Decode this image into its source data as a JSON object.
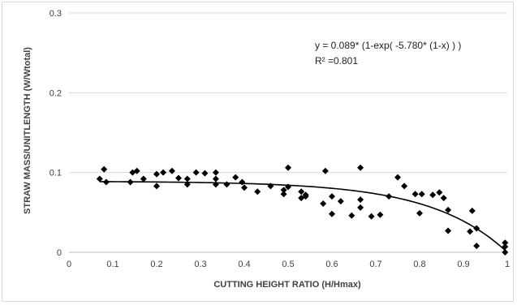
{
  "chart_data": {
    "type": "scatter",
    "title": "",
    "xlabel": "CUTTING HEIGHT RATIO (H/Hmax)",
    "ylabel": "STRAW MASS/UNITLENGTH (W/Wtotal)",
    "xlim": [
      0,
      1
    ],
    "ylim": [
      0,
      0.3
    ],
    "x_ticks": [
      "0",
      "0.1",
      "0.2",
      "0.3",
      "0.4",
      "0.5",
      "0.6",
      "0.7",
      "0.8",
      "0.9",
      "1"
    ],
    "y_ticks": [
      "0",
      "0.1",
      "0.2",
      "0.3"
    ],
    "grid": "horizontal",
    "annotations": {
      "equation": "y = 0.089* (1-exp( -5.780* (1-x) ) )",
      "r_squared": "R² =0.801"
    },
    "fit": {
      "a": 0.089,
      "b": 5.78
    },
    "series": [
      {
        "marker": "diamond",
        "color": "#000000",
        "points": [
          [
            0.07,
            0.092
          ],
          [
            0.08,
            0.104
          ],
          [
            0.085,
            0.088
          ],
          [
            0.14,
            0.088
          ],
          [
            0.145,
            0.1
          ],
          [
            0.155,
            0.102
          ],
          [
            0.17,
            0.092
          ],
          [
            0.2,
            0.098
          ],
          [
            0.2,
            0.083
          ],
          [
            0.215,
            0.1
          ],
          [
            0.235,
            0.102
          ],
          [
            0.25,
            0.093
          ],
          [
            0.27,
            0.085
          ],
          [
            0.27,
            0.092
          ],
          [
            0.29,
            0.1
          ],
          [
            0.31,
            0.099
          ],
          [
            0.335,
            0.1
          ],
          [
            0.335,
            0.092
          ],
          [
            0.335,
            0.085
          ],
          [
            0.36,
            0.085
          ],
          [
            0.38,
            0.094
          ],
          [
            0.395,
            0.088
          ],
          [
            0.4,
            0.081
          ],
          [
            0.43,
            0.076
          ],
          [
            0.46,
            0.083
          ],
          [
            0.49,
            0.073
          ],
          [
            0.49,
            0.078
          ],
          [
            0.5,
            0.106
          ],
          [
            0.5,
            0.082
          ],
          [
            0.53,
            0.068
          ],
          [
            0.53,
            0.076
          ],
          [
            0.54,
            0.072
          ],
          [
            0.54,
            0.07
          ],
          [
            0.58,
            0.061
          ],
          [
            0.585,
            0.102
          ],
          [
            0.6,
            0.048
          ],
          [
            0.6,
            0.07
          ],
          [
            0.62,
            0.064
          ],
          [
            0.645,
            0.046
          ],
          [
            0.665,
            0.106
          ],
          [
            0.665,
            0.066
          ],
          [
            0.665,
            0.056
          ],
          [
            0.69,
            0.045
          ],
          [
            0.71,
            0.047
          ],
          [
            0.73,
            0.07
          ],
          [
            0.75,
            0.094
          ],
          [
            0.765,
            0.083
          ],
          [
            0.79,
            0.073
          ],
          [
            0.8,
            0.049
          ],
          [
            0.805,
            0.073
          ],
          [
            0.83,
            0.072
          ],
          [
            0.845,
            0.075
          ],
          [
            0.855,
            0.068
          ],
          [
            0.865,
            0.053
          ],
          [
            0.865,
            0.027
          ],
          [
            0.915,
            0.026
          ],
          [
            0.92,
            0.052
          ],
          [
            0.93,
            0.03
          ],
          [
            0.93,
            0.008
          ],
          [
            0.995,
            0.012
          ],
          [
            0.995,
            0.007
          ],
          [
            0.995,
            0.0
          ]
        ]
      }
    ]
  }
}
